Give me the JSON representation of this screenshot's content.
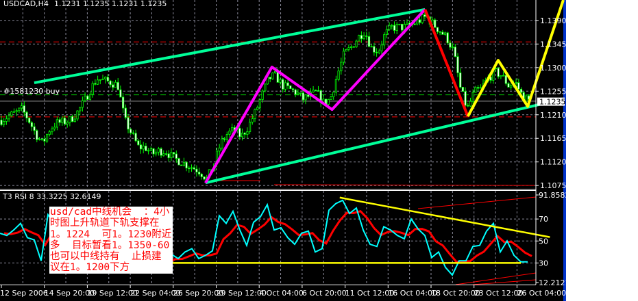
{
  "window": {
    "symbol_title": "USDCAD,H4",
    "ohlc": "1.1231 1.1235 1.1231 1.1235"
  },
  "colors": {
    "background": "#000000",
    "grid": "#8c8c9c",
    "bull": "#00ff00",
    "upper_trend": "#00ff99",
    "zigzag": "#ff00ff",
    "down_leg": "#ff0000",
    "yellow": "#ffff00",
    "rsi": "#00ffff",
    "t3": "#ff0000",
    "frame": "#ffffff",
    "side_bar": "#0033cc"
  },
  "order_label": "#1581230 buy",
  "note_lines": [
    "usd/cad中线机会  ：4小",
    "时图上升轨道下轨支撑在",
    "1。1224  可1。1230附近",
    "多  目标暂看1。1350-60",
    "也可以中线持有  止损建",
    "议在1。1200下方"
  ],
  "chart_data": {
    "type": "candlestick",
    "title": "USDCAD,H4",
    "price_axis": {
      "ticks": [
        "1.1390",
        "1.1345",
        "1.1300",
        "1.1255",
        "1.1210",
        "1.1165",
        "1.1120",
        "1.1075"
      ],
      "range": [
        1.107,
        1.1429
      ]
    },
    "current_price": "1.1235",
    "time_axis": {
      "ticks": [
        {
          "label": "12 Sep 2006",
          "t": "2006-09-12 00:00"
        },
        {
          "label": "14 Sep 20:00",
          "t": "2006-09-14 20:00"
        },
        {
          "label": "19 Sep 12:00",
          "t": "2006-09-19 12:00"
        },
        {
          "label": "22 Sep 04:00",
          "t": "2006-09-22 04:00"
        },
        {
          "label": "26 Sep 20:00",
          "t": "2006-09-26 20:00"
        },
        {
          "label": "29 Sep 12:00",
          "t": "2006-09-29 12:00"
        },
        {
          "label": "4 Oct 04:00",
          "t": "2006-10-04 04:00"
        },
        {
          "label": "6 Oct 20:00",
          "t": "2006-10-06 20:00"
        },
        {
          "label": "11 Oct 12:00",
          "t": "2006-10-11 12:00"
        },
        {
          "label": "16 Oct 04:00",
          "t": "2006-10-16 04:00"
        },
        {
          "label": "18 Oct 20:00",
          "t": "2006-10-18 20:00"
        },
        {
          "label": "23 Oct 12:00",
          "t": "2006-10-23 12:00"
        },
        {
          "label": "26 Oct 04:00",
          "t": "2006-10-26 04:00"
        }
      ]
    },
    "price_path": [
      1.12,
      1.1207,
      1.1213,
      1.122,
      1.12,
      1.1174,
      1.1155,
      1.1181,
      1.1194,
      1.1196,
      1.12,
      1.1213,
      1.1233,
      1.1259,
      1.1279,
      1.1275,
      1.1272,
      1.1266,
      1.12,
      1.1174,
      1.1148,
      1.1148,
      1.1135,
      1.1141,
      1.1141,
      1.1128,
      1.1122,
      1.1115,
      1.1109,
      1.1102,
      1.1087,
      1.1115,
      1.1155,
      1.1174,
      1.1181,
      1.1168,
      1.1187,
      1.1213,
      1.1246,
      1.1279,
      1.1285,
      1.1266,
      1.1259,
      1.1253,
      1.124,
      1.1246,
      1.1253,
      1.1233,
      1.124,
      1.1285,
      1.1325,
      1.1338,
      1.1357,
      1.137,
      1.1338,
      1.1331,
      1.1364,
      1.1377,
      1.1377,
      1.1377,
      1.1383,
      1.139,
      1.1397,
      1.1383,
      1.137,
      1.1357,
      1.1331,
      1.1259,
      1.122,
      1.1253,
      1.1259,
      1.1279,
      1.1292,
      1.1285,
      1.1266,
      1.1272,
      1.1246,
      1.1236
    ],
    "trendlines": [
      {
        "name": "upper-channel",
        "color": "#00ff99",
        "points": [
          {
            "t": "2006-09-14 04:00",
            "p": 1.1271
          },
          {
            "t": "2006-10-18 11:00",
            "p": 1.1411
          }
        ]
      },
      {
        "name": "lower-channel",
        "color": "#00ff99",
        "points": [
          {
            "t": "2006-09-28 20:00",
            "p": 1.108
          },
          {
            "t": "2006-10-29 00:00",
            "p": 1.124
          }
        ]
      },
      {
        "name": "zigzag-up",
        "color": "#ff00ff",
        "points": [
          {
            "t": "2006-09-28 20:00",
            "p": 1.108
          },
          {
            "t": "2006-10-04 23:00",
            "p": 1.1301
          },
          {
            "t": "2006-10-10 02:00",
            "p": 1.122
          },
          {
            "t": "2006-10-18 11:00",
            "p": 1.1411
          }
        ]
      },
      {
        "name": "down-leg",
        "color": "#ff0000",
        "points": [
          {
            "t": "2006-10-18 11:00",
            "p": 1.1411
          },
          {
            "t": "2006-10-22 20:00",
            "p": 1.1207
          }
        ]
      },
      {
        "name": "projection",
        "color": "#ffff00",
        "points": [
          {
            "t": "2006-10-22 20:00",
            "p": 1.1207
          },
          {
            "t": "2006-10-25 00:00",
            "p": 1.1314
          },
          {
            "t": "2006-10-26 20:00",
            "p": 1.1226
          },
          {
            "t": "2006-10-29 01:00",
            "p": 1.1429
          }
        ]
      }
    ],
    "levels": [
      {
        "name": "stop-level",
        "price": 1.1349,
        "color": "#ff0000",
        "style": "dashed"
      },
      {
        "name": "buy-order-level",
        "price": 1.1248,
        "color": "#00cc00",
        "style": "dashed"
      },
      {
        "name": "support-level",
        "price": 1.1206,
        "color": "#ff0000",
        "style": "dashed"
      },
      {
        "name": "bid-line",
        "price": 1.1236,
        "color": "#999999",
        "style": "solid"
      }
    ],
    "rsi": {
      "label": "T3 RSI 8 33.3225 32.6149",
      "ticks": [
        "91.8582",
        "70",
        "50",
        "30",
        "12.2121"
      ],
      "range": [
        12.2121,
        91.8582
      ],
      "grid": [
        70,
        50,
        30
      ],
      "values": [
        57,
        55,
        60,
        66,
        53,
        51,
        32,
        74,
        66,
        62,
        60,
        55,
        50,
        45,
        40,
        38,
        42,
        36,
        30,
        27,
        28,
        29,
        27,
        30,
        33,
        38,
        34,
        40,
        43,
        34,
        37,
        41,
        73,
        66,
        77,
        60,
        46,
        67,
        72,
        83,
        60,
        62,
        53,
        47,
        57,
        59,
        40,
        43,
        78,
        84,
        87,
        75,
        80,
        60,
        47,
        45,
        63,
        60,
        55,
        52,
        70,
        61,
        55,
        35,
        40,
        26,
        19,
        32,
        32,
        45,
        46,
        59,
        66,
        40,
        50,
        37,
        31,
        31
      ],
      "trendlines": [
        {
          "color": "#ffff00",
          "points": [
            {
              "t": "2006-10-10 22:00",
              "v": 89.5
            },
            {
              "t": "2006-10-28 05:00",
              "v": 53.5
            }
          ]
        },
        {
          "color": "#ffff00",
          "points": [
            {
              "t": "2006-09-22 04:00",
              "v": 30
            },
            {
              "t": "2006-10-26 10:00",
              "v": 30
            }
          ]
        }
      ]
    }
  }
}
